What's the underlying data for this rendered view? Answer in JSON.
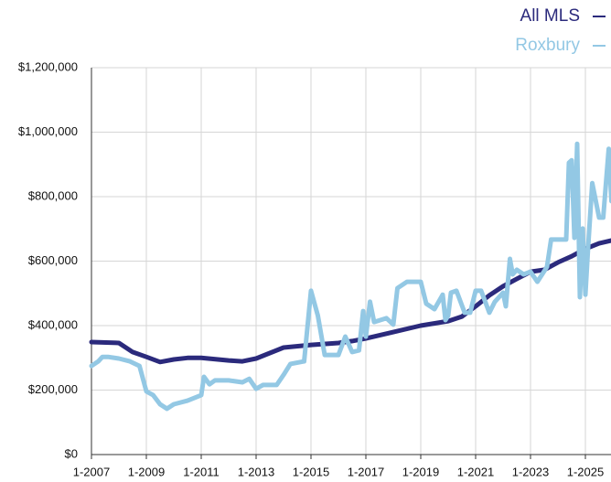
{
  "chart_data": {
    "type": "line",
    "series": [
      {
        "name": "All MLS",
        "color": "#2b2a7c",
        "x": [
          2007,
          2008,
          2008.5,
          2009,
          2009.5,
          2010,
          2010.5,
          2011,
          2012,
          2012.5,
          2013,
          2013.5,
          2014,
          2015,
          2016,
          2016.5,
          2017,
          2018,
          2019,
          2020,
          2020.5,
          2021,
          2021.5,
          2022,
          2022.5,
          2023,
          2023.5,
          2024,
          2024.5,
          2025,
          2025.5,
          2025.95
        ],
        "values": [
          349000,
          346000,
          318000,
          303000,
          287000,
          295000,
          300000,
          300000,
          292000,
          289000,
          298000,
          315000,
          332000,
          340000,
          346000,
          352000,
          360000,
          380000,
          400000,
          414000,
          428000,
          460000,
          494000,
          522000,
          545000,
          567000,
          573000,
          596000,
          615000,
          638000,
          655000,
          664000
        ]
      },
      {
        "name": "Roxbury",
        "color": "#93c8e4",
        "x": [
          2007,
          2007.25,
          2007.4,
          2007.6,
          2008,
          2008.4,
          2008.75,
          2009,
          2009.25,
          2009.5,
          2009.75,
          2010,
          2010.5,
          2011,
          2011.1,
          2011.3,
          2011.5,
          2012,
          2012.5,
          2012.75,
          2013,
          2013.25,
          2013.75,
          2014,
          2014.25,
          2014.75,
          2015,
          2015.25,
          2015.5,
          2016,
          2016.25,
          2016.5,
          2016.75,
          2016.9,
          2017,
          2017.15,
          2017.3,
          2017.75,
          2018,
          2018.15,
          2018.5,
          2019,
          2019.2,
          2019.5,
          2019.8,
          2019.9,
          2020,
          2020.1,
          2020.3,
          2020.6,
          2020.8,
          2021,
          2021.2,
          2021.5,
          2021.7,
          2022,
          2022.1,
          2022.25,
          2022.35,
          2022.5,
          2022.75,
          2023,
          2023.25,
          2023.6,
          2023.75,
          2024.3,
          2024.4,
          2024.5,
          2024.6,
          2024.7,
          2024.8,
          2024.9,
          2025,
          2025.1,
          2025.25,
          2025.5,
          2025.65,
          2025.75,
          2025.85,
          2025.95
        ],
        "values": [
          275000,
          289000,
          303000,
          303000,
          298000,
          289000,
          275000,
          196000,
          184000,
          156000,
          142000,
          156000,
          167000,
          184000,
          241000,
          218000,
          230000,
          230000,
          224000,
          235000,
          204000,
          216000,
          216000,
          247000,
          281000,
          289000,
          508000,
          431000,
          309000,
          309000,
          366000,
          318000,
          323000,
          445000,
          366000,
          474000,
          411000,
          423000,
          403000,
          516000,
          536000,
          536000,
          468000,
          451000,
          496000,
          417000,
          431000,
          502000,
          508000,
          440000,
          440000,
          508000,
          508000,
          440000,
          474000,
          502000,
          460000,
          607000,
          559000,
          573000,
          559000,
          567000,
          536000,
          582000,
          667000,
          667000,
          905000,
          913000,
          672000,
          964000,
          488000,
          701000,
          496000,
          644000,
          842000,
          735000,
          735000,
          842000,
          948000,
          786000
        ]
      }
    ],
    "xlim": [
      2007,
      2026
    ],
    "xticks": [
      {
        "value": 2007,
        "label": "1-2007"
      },
      {
        "value": 2009,
        "label": "1-2009"
      },
      {
        "value": 2011,
        "label": "1-2011"
      },
      {
        "value": 2013,
        "label": "1-2013"
      },
      {
        "value": 2015,
        "label": "1-2015"
      },
      {
        "value": 2017,
        "label": "1-2017"
      },
      {
        "value": 2019,
        "label": "1-2019"
      },
      {
        "value": 2021,
        "label": "1-2021"
      },
      {
        "value": 2023,
        "label": "1-2023"
      },
      {
        "value": 2025,
        "label": "1-2025"
      }
    ],
    "ylim": [
      0,
      1200000
    ],
    "yticks": [
      {
        "value": 0,
        "label": "$0"
      },
      {
        "value": 200000,
        "label": "$200,000"
      },
      {
        "value": 400000,
        "label": "$400,000"
      },
      {
        "value": 600000,
        "label": "$600,000"
      },
      {
        "value": 800000,
        "label": "$800,000"
      },
      {
        "value": 1000000,
        "label": "$1,000,000"
      },
      {
        "value": 1200000,
        "label": "$1,200,000"
      }
    ],
    "grid": true,
    "legend": "top-right"
  }
}
